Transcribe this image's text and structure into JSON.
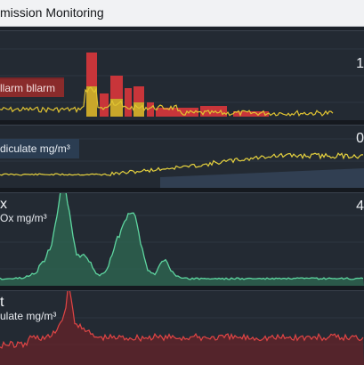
{
  "window": {
    "title": "mission Monitoring"
  },
  "panels": [
    {
      "id": "p1",
      "label": "llarm bllarm",
      "value": "1",
      "stroke": "#e3d33c"
    },
    {
      "id": "p2",
      "label": "diculate mg/m³",
      "value": "0",
      "stroke": "#e6d23e"
    },
    {
      "id": "p3",
      "label_top": "x",
      "label": "Ox mg/m³",
      "value": "4",
      "stroke": "#5ed6a0"
    },
    {
      "id": "p4",
      "label_top": "t",
      "label": "ulate mg/m³",
      "value": "",
      "stroke": "#e04545"
    }
  ],
  "colors": {
    "background": "#1b2129",
    "panel": "#232a33",
    "alarm_red": "#c8353a",
    "gas_green": "#5ed6a0",
    "particulate_yellow": "#e6d23e",
    "warn_yellow": "#e0c332"
  }
}
